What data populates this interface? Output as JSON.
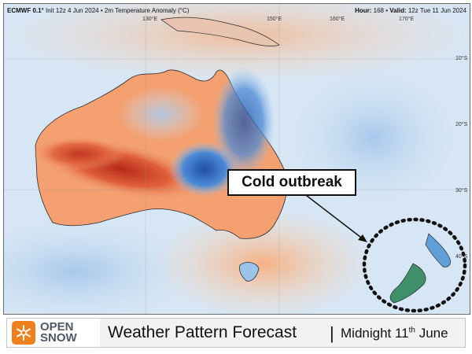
{
  "header": {
    "model": "ECMWF 0.1°",
    "init": "Init 12z 4 Jun 2024",
    "field": "2m Temperature Anomaly (°C)",
    "hour_label": "Hour:",
    "hour_value": "168",
    "valid_label": "Valid:",
    "valid_value": "12z Tue 11 Jun 2024"
  },
  "map": {
    "longitude_labels": [
      "130°E",
      "150°E",
      "160°E",
      "170°E"
    ],
    "latitude_labels": [
      "10°S",
      "20°S",
      "30°S",
      "40°S"
    ],
    "colors": {
      "warm_strong": "#c0301f",
      "warm": "#f0804a",
      "warm_light": "#f7c8a0",
      "cold": "#2f6fc4",
      "cold_light": "#9cc3ea",
      "neutral": "#f6f4f0",
      "sea": "#cfe2f3"
    }
  },
  "callout": {
    "text": "Cold outbreak"
  },
  "footer": {
    "logo_top": "OPEN",
    "logo_bottom": "SNOW",
    "title": "Weather Pattern Forecast",
    "separator": "|",
    "date_prefix": "Midnight 11",
    "date_suffix": "th",
    "date_month": " June"
  }
}
